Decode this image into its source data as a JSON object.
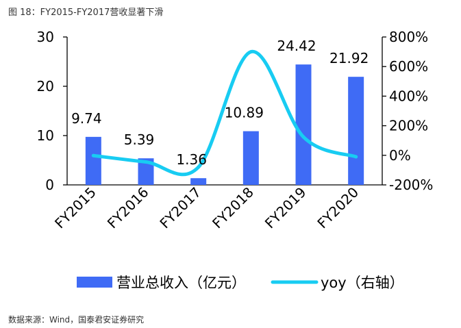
{
  "caption": "图 18：FY2015-FY2017营收显著下滑",
  "source": "数据来源：Wind，国泰君安证券研究",
  "colors": {
    "bar": "#3f6bf5",
    "line": "#18ccf2"
  },
  "chart_data": {
    "type": "bar",
    "categories": [
      "FY2015",
      "FY2016",
      "FY2017",
      "FY2018",
      "FY2019",
      "FY2020"
    ],
    "series": [
      {
        "name": "营业总收入（亿元）",
        "type": "bar",
        "axis": "left",
        "values": [
          9.74,
          5.39,
          1.36,
          10.89,
          24.42,
          21.92
        ],
        "labels": [
          "9.74",
          "5.39",
          "1.36",
          "10.89",
          "24.42",
          "21.92"
        ]
      },
      {
        "name": "yoy（右轴）",
        "type": "line",
        "axis": "right",
        "values": [
          -2,
          -45,
          -80,
          700,
          124,
          -10
        ]
      }
    ],
    "ylim": [
      0,
      30
    ],
    "yticks": [
      "0",
      "10",
      "20",
      "30"
    ],
    "y2lim": [
      -200,
      800
    ],
    "y2ticks": [
      "-200%",
      "0%",
      "200%",
      "400%",
      "600%",
      "800%"
    ],
    "legend": "bottom"
  }
}
